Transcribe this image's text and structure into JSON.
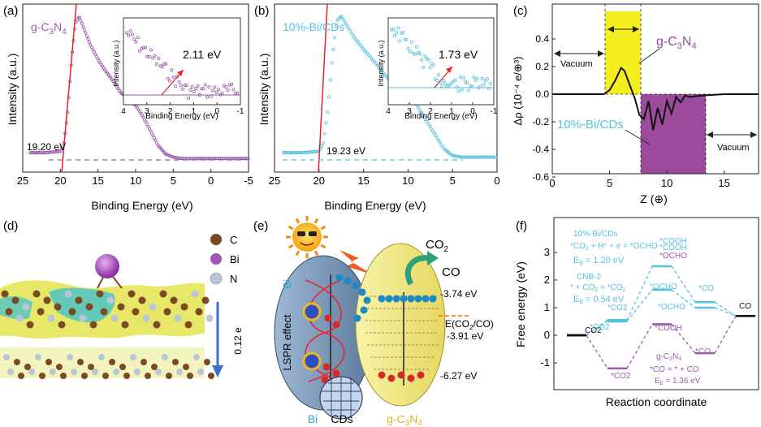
{
  "figure": {
    "panels": {
      "a": {
        "label": "(a)",
        "xlabel": "Binding Energy (eV)",
        "ylabel": "Intensity (a.u.)",
        "legend": "g-C",
        "legend_sub": "3",
        "legend_tail": "N",
        "legend_sub2": "4",
        "cutoff_label": "19.20 eV",
        "inset": {
          "ylabel": "Intensity (a.u.)",
          "xlabel": "Binding Energy (eV)",
          "gap_label": "2.11 eV"
        }
      },
      "b": {
        "label": "(b)",
        "xlabel": "Binding Energy (eV)",
        "ylabel": "Intensity (a.u.)",
        "legend": "10%-Bi/CDs",
        "cutoff_label": "19.23 eV",
        "inset": {
          "ylabel": "Intensity (a.u.)",
          "xlabel": "Binding Energy (eV)",
          "gap_label": "1.73 eV"
        }
      },
      "c": {
        "label": "(c)",
        "xlabel": "Z (⊕)",
        "ylabel": "Δρ (10⁻⁴ e/⊕³)",
        "vacuum_left": "Vacuum",
        "vacuum_right": "Vacuum",
        "region1": "g-C3N4",
        "region2": "10%-Bi/CDs"
      },
      "d": {
        "label": "(d)",
        "legend": [
          "C",
          "Bi",
          "N"
        ],
        "legend_colors": [
          "#7a4a24",
          "#a455b8",
          "#b9c6d6"
        ],
        "charge": "0.12 e"
      },
      "e": {
        "label": "(e)",
        "co2": "CO2",
        "co": "CO",
        "lspr": "LSPR effect",
        "bi_side": "Bi",
        "level1": "-3.74 eV",
        "level2": "E(CO2/CO)",
        "level3": "-3.91 eV",
        "level4": "-6.27 eV",
        "bottom": [
          "Bi",
          "CDs",
          "g-C3N4"
        ]
      },
      "f": {
        "label": "(f)",
        "xlabel": "Reaction coordinate",
        "ylabel": "Free energy (eV)",
        "legend_cds": "10%-Bi/CDs",
        "eq1": "*CO2 + H+ + e = *OCHO",
        "eb1": "Eb = 1.20 eV",
        "cnb": "CNB-2",
        "eq2": "* + CO2 = *CO2",
        "eb2": "Eb = 0.54 eV",
        "gcn": "g-C3N4",
        "eq3": "*CO = * + CO",
        "eb3": "Eb = 1.36 eV",
        "states": {
          "co2": "CO2",
          "sco2": "*CO2",
          "socho": "*OCHO",
          "scooh": "*COOH",
          "sco": "*CO",
          "co": "CO"
        }
      }
    }
  },
  "chart_data": [
    {
      "type": "scatter",
      "panel": "a",
      "xlabel": "Binding Energy (eV)",
      "ylabel": "Intensity (a.u.)",
      "xlim": [
        24,
        -5
      ],
      "xticks": [
        25,
        20,
        15,
        10,
        5,
        0,
        -5
      ],
      "cutoff_eV": 19.2,
      "series": [
        {
          "x": [
            24,
            22,
            20,
            19.5,
            19,
            18.5,
            18,
            17.5,
            17,
            16,
            15,
            14,
            13,
            12,
            11,
            10,
            9,
            8,
            7,
            6,
            5,
            4,
            0,
            -5
          ],
          "y": [
            0.05,
            0.05,
            0.06,
            0.12,
            0.35,
            0.7,
            0.95,
            1.0,
            0.93,
            0.8,
            0.7,
            0.62,
            0.55,
            0.47,
            0.42,
            0.38,
            0.3,
            0.2,
            0.1,
            0.04,
            0.02,
            0.01,
            0.01,
            0.01
          ]
        }
      ],
      "inset": {
        "xlim": [
          4,
          -1
        ],
        "gap_eV": 2.11
      }
    },
    {
      "type": "scatter",
      "panel": "b",
      "xlabel": "Binding Energy (eV)",
      "ylabel": "Intensity (a.u.)",
      "xlim": [
        24,
        0
      ],
      "xticks": [
        25,
        20,
        15,
        10,
        5,
        0
      ],
      "cutoff_eV": 19.23,
      "series": [
        {
          "x": [
            24,
            22,
            20,
            19.5,
            19,
            18.5,
            18,
            17.5,
            17,
            16,
            15,
            14,
            13,
            12,
            11,
            10,
            9,
            8,
            7,
            6,
            5,
            4,
            2,
            0
          ],
          "y": [
            0.05,
            0.05,
            0.06,
            0.12,
            0.35,
            0.72,
            0.97,
            1.0,
            0.95,
            0.85,
            0.77,
            0.7,
            0.62,
            0.55,
            0.5,
            0.45,
            0.38,
            0.28,
            0.18,
            0.08,
            0.03,
            0.02,
            0.02,
            0.02
          ]
        }
      ],
      "inset": {
        "xlim": [
          4,
          -1
        ],
        "gap_eV": 1.73
      }
    },
    {
      "type": "line",
      "panel": "c",
      "xlabel": "Z (⊕)",
      "ylabel": "Δρ (10⁻⁴ e/⊕³)",
      "xlim": [
        0,
        18
      ],
      "ylim": [
        -0.7,
        0.4
      ],
      "xticks": [
        0,
        5,
        10,
        15
      ],
      "yticks": [
        0.4,
        0.2,
        0.0,
        -0.2,
        -0.4,
        -0.6
      ],
      "x": [
        0,
        3,
        4.5,
        5,
        5.5,
        6,
        6.3,
        6.7,
        7.2,
        7.6,
        8.0,
        8.4,
        8.8,
        9.2,
        9.6,
        10.0,
        10.4,
        10.8,
        11.2,
        11.6,
        12,
        13,
        15,
        18
      ],
      "y": [
        0,
        0,
        0,
        0.03,
        0.1,
        0.19,
        0.17,
        0.08,
        -0.03,
        -0.15,
        -0.18,
        -0.05,
        -0.26,
        -0.1,
        -0.22,
        -0.05,
        -0.14,
        -0.02,
        -0.06,
        -0.01,
        -0.02,
        -0.01,
        0,
        0
      ],
      "regions": [
        {
          "name": "g-C3N4",
          "x": [
            4.4,
            7.4
          ],
          "color": "#f4ee1f"
        },
        {
          "name": "10%-Bi/CDs",
          "x": [
            7.4,
            12.8
          ],
          "color": "#9b4a9c"
        }
      ]
    },
    {
      "type": "line",
      "panel": "f",
      "xlabel": "Reaction coordinate",
      "ylabel": "Free energy (eV)",
      "ylim": [
        -1.6,
        3.0
      ],
      "yticks": [
        3,
        2,
        1,
        0,
        -1
      ],
      "series": [
        {
          "name": "10%-Bi/CDs",
          "color": "#56c1df",
          "values": [
            0,
            0.55,
            2.5,
            1.2,
            0.7
          ]
        },
        {
          "name": "CNB-2",
          "color": "#56c1df",
          "values": [
            0,
            0.5,
            1.65,
            1.0,
            0.7
          ]
        },
        {
          "name": "g-C3N4",
          "color": "#9b5aac",
          "values": [
            0,
            -1.2,
            0.4,
            -0.65,
            0.7
          ]
        }
      ]
    }
  ]
}
